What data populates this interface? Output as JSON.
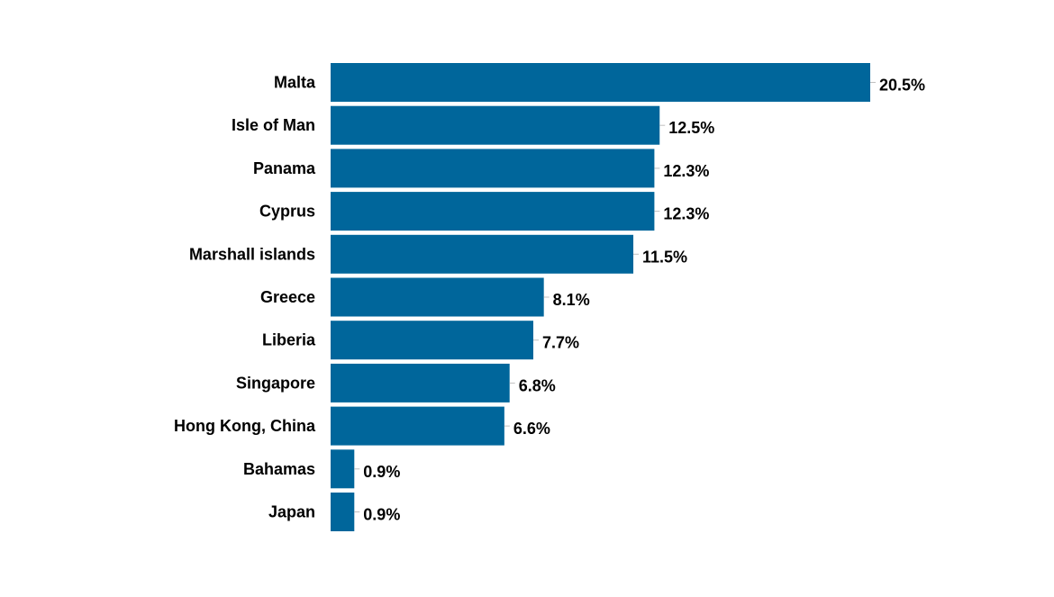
{
  "chart_data": {
    "type": "bar",
    "orientation": "horizontal",
    "title": "",
    "xlabel": "",
    "ylabel": "",
    "categories": [
      "Malta",
      "Isle of Man",
      "Panama",
      "Cyprus",
      "Marshall islands",
      "Greece",
      "Liberia",
      "Singapore",
      "Hong Kong, China",
      "Bahamas",
      "Japan"
    ],
    "values": [
      20.5,
      12.5,
      12.3,
      12.3,
      11.5,
      8.1,
      7.7,
      6.8,
      6.6,
      0.9,
      0.9
    ],
    "data_labels": [
      "20.5%",
      "12.5%",
      "12.3%",
      "12.3%",
      "11.5%",
      "8.1%",
      "7.7%",
      "6.8%",
      "6.6%",
      "0.9%",
      "0.9%"
    ],
    "value_unit": "%",
    "xlim": [
      0,
      20.5
    ],
    "grid": false,
    "legend": "none",
    "bar_color": "#00669b",
    "leader_line_color": "#bfbfbf"
  }
}
